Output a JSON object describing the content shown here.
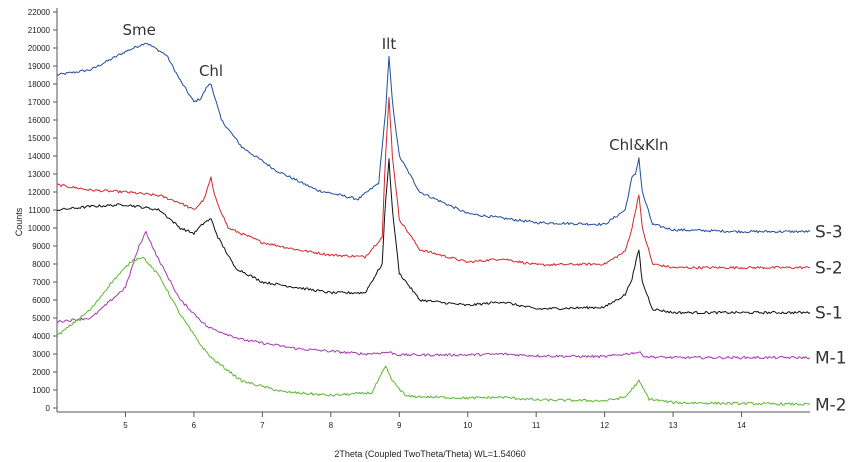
{
  "chart_data": {
    "type": "line",
    "title": "",
    "xlabel": "2Theta (Coupled TwoTheta/Theta) WL=1.54060",
    "ylabel": "Counts",
    "xlim": [
      4.0,
      15.0
    ],
    "ylim": [
      0,
      22000
    ],
    "x_ticks": [
      5,
      6,
      7,
      8,
      9,
      10,
      11,
      12,
      13,
      14
    ],
    "y_ticks": [
      0,
      1000,
      2000,
      3000,
      4000,
      5000,
      6000,
      7000,
      8000,
      9000,
      10000,
      11000,
      12000,
      13000,
      14000,
      15000,
      16000,
      17000,
      18000,
      19000,
      20000,
      21000,
      22000
    ],
    "grid": false,
    "legend": "none",
    "peak_annotations": [
      {
        "text": "Sme",
        "x": 5.2,
        "y": 20400
      },
      {
        "text": "Chl",
        "x": 6.25,
        "y": 18100
      },
      {
        "text": "Ilt",
        "x": 8.85,
        "y": 19600
      },
      {
        "text": "Chl&Kln",
        "x": 12.5,
        "y": 14000
      }
    ],
    "series": [
      {
        "name": "S-3",
        "color": "#1f4e9e",
        "points": [
          [
            4.0,
            18500
          ],
          [
            4.5,
            18800
          ],
          [
            5.0,
            19800
          ],
          [
            5.3,
            20300
          ],
          [
            5.6,
            19600
          ],
          [
            5.8,
            18200
          ],
          [
            6.0,
            17000
          ],
          [
            6.1,
            17200
          ],
          [
            6.2,
            17900
          ],
          [
            6.25,
            18000
          ],
          [
            6.4,
            16000
          ],
          [
            6.7,
            14500
          ],
          [
            7.2,
            13200
          ],
          [
            7.8,
            12100
          ],
          [
            8.4,
            11600
          ],
          [
            8.7,
            12500
          ],
          [
            8.8,
            16500
          ],
          [
            8.85,
            19500
          ],
          [
            8.9,
            17000
          ],
          [
            9.0,
            14000
          ],
          [
            9.3,
            12000
          ],
          [
            10.0,
            10800
          ],
          [
            11.0,
            10300
          ],
          [
            12.0,
            10200
          ],
          [
            12.3,
            11000
          ],
          [
            12.4,
            12800
          ],
          [
            12.45,
            13000
          ],
          [
            12.5,
            13900
          ],
          [
            12.55,
            12000
          ],
          [
            12.7,
            10200
          ],
          [
            13.0,
            9900
          ],
          [
            14.0,
            9800
          ],
          [
            15.0,
            9800
          ]
        ]
      },
      {
        "name": "S-2",
        "color": "#d62728",
        "points": [
          [
            4.0,
            12400
          ],
          [
            4.5,
            12100
          ],
          [
            5.0,
            12000
          ],
          [
            5.5,
            11800
          ],
          [
            5.8,
            11400
          ],
          [
            6.0,
            11000
          ],
          [
            6.15,
            11600
          ],
          [
            6.25,
            12800
          ],
          [
            6.3,
            11800
          ],
          [
            6.5,
            10000
          ],
          [
            7.0,
            9200
          ],
          [
            7.5,
            8800
          ],
          [
            8.0,
            8500
          ],
          [
            8.5,
            8400
          ],
          [
            8.75,
            9500
          ],
          [
            8.8,
            14000
          ],
          [
            8.85,
            17300
          ],
          [
            8.9,
            14000
          ],
          [
            9.0,
            10500
          ],
          [
            9.3,
            8800
          ],
          [
            10.0,
            8100
          ],
          [
            10.5,
            8300
          ],
          [
            11.0,
            7950
          ],
          [
            12.0,
            8000
          ],
          [
            12.3,
            8700
          ],
          [
            12.4,
            10000
          ],
          [
            12.5,
            11900
          ],
          [
            12.55,
            10000
          ],
          [
            12.7,
            8000
          ],
          [
            13.0,
            7800
          ],
          [
            15.0,
            7800
          ]
        ]
      },
      {
        "name": "S-1",
        "color": "#111111",
        "points": [
          [
            4.0,
            11000
          ],
          [
            4.5,
            11200
          ],
          [
            5.0,
            11300
          ],
          [
            5.5,
            11000
          ],
          [
            5.8,
            10000
          ],
          [
            6.0,
            9700
          ],
          [
            6.15,
            10300
          ],
          [
            6.25,
            10500
          ],
          [
            6.35,
            9500
          ],
          [
            6.6,
            7800
          ],
          [
            7.0,
            7000
          ],
          [
            7.5,
            6700
          ],
          [
            8.0,
            6400
          ],
          [
            8.5,
            6400
          ],
          [
            8.75,
            8000
          ],
          [
            8.8,
            11500
          ],
          [
            8.85,
            13800
          ],
          [
            8.9,
            11000
          ],
          [
            9.0,
            7500
          ],
          [
            9.3,
            6000
          ],
          [
            10.0,
            5700
          ],
          [
            10.5,
            5900
          ],
          [
            11.0,
            5500
          ],
          [
            12.0,
            5600
          ],
          [
            12.3,
            6300
          ],
          [
            12.4,
            7200
          ],
          [
            12.5,
            8800
          ],
          [
            12.55,
            7000
          ],
          [
            12.7,
            5500
          ],
          [
            13.0,
            5300
          ],
          [
            15.0,
            5300
          ]
        ]
      },
      {
        "name": "M-1",
        "color": "#a23ab0",
        "points": [
          [
            4.0,
            4800
          ],
          [
            4.5,
            5000
          ],
          [
            5.0,
            6700
          ],
          [
            5.2,
            9000
          ],
          [
            5.3,
            9800
          ],
          [
            5.45,
            8500
          ],
          [
            5.8,
            6000
          ],
          [
            6.2,
            4500
          ],
          [
            6.7,
            3800
          ],
          [
            7.5,
            3300
          ],
          [
            8.5,
            3000
          ],
          [
            8.85,
            3100
          ],
          [
            9.0,
            2950
          ],
          [
            10.0,
            2950
          ],
          [
            10.5,
            3000
          ],
          [
            11.0,
            2900
          ],
          [
            12.0,
            2850
          ],
          [
            12.5,
            3100
          ],
          [
            12.6,
            2850
          ],
          [
            13.0,
            2800
          ],
          [
            15.0,
            2800
          ]
        ]
      },
      {
        "name": "M-2",
        "color": "#5cb82e",
        "points": [
          [
            4.0,
            4000
          ],
          [
            4.5,
            5500
          ],
          [
            4.8,
            7000
          ],
          [
            5.1,
            8200
          ],
          [
            5.25,
            8400
          ],
          [
            5.5,
            7300
          ],
          [
            5.8,
            5200
          ],
          [
            6.1,
            3500
          ],
          [
            6.25,
            2800
          ],
          [
            6.7,
            1500
          ],
          [
            7.3,
            900
          ],
          [
            8.0,
            700
          ],
          [
            8.6,
            850
          ],
          [
            8.8,
            2300
          ],
          [
            8.9,
            1500
          ],
          [
            9.1,
            650
          ],
          [
            10.0,
            550
          ],
          [
            10.5,
            600
          ],
          [
            11.0,
            450
          ],
          [
            12.0,
            400
          ],
          [
            12.3,
            600
          ],
          [
            12.5,
            1500
          ],
          [
            12.65,
            500
          ],
          [
            13.0,
            300
          ],
          [
            14.0,
            250
          ],
          [
            15.0,
            200
          ]
        ]
      }
    ]
  }
}
